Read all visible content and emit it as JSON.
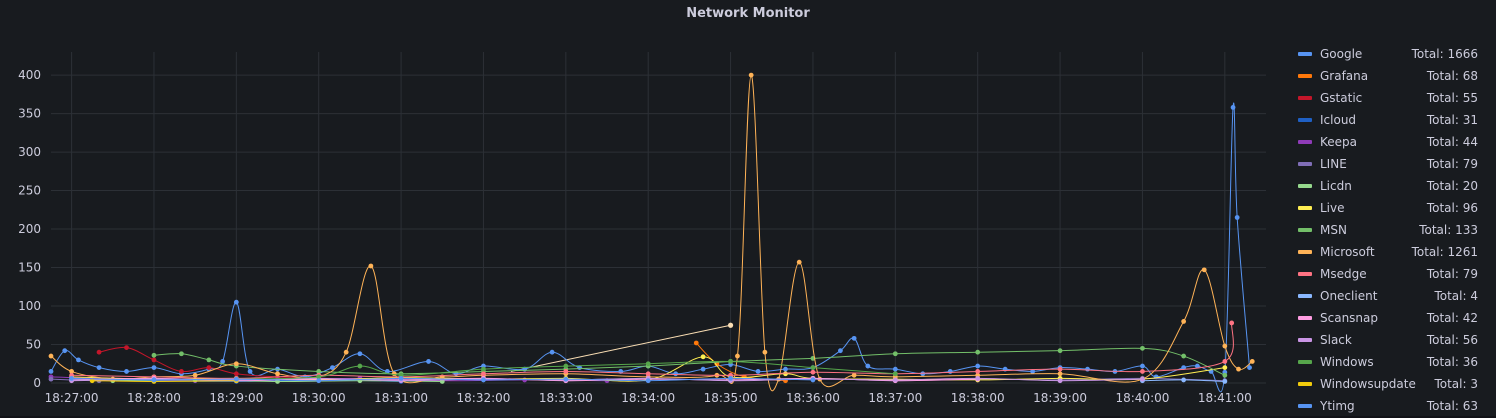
{
  "panel": {
    "title": "Network Monitor"
  },
  "chart_data": {
    "type": "line",
    "title": "Network Monitor",
    "xlabel": "",
    "ylabel": "",
    "ylim": [
      0,
      430
    ],
    "y_ticks": [
      0,
      50,
      100,
      150,
      200,
      250,
      300,
      350,
      400
    ],
    "x_range": [
      "18:26:45",
      "18:41:30"
    ],
    "x_ticks": [
      "18:27:00",
      "18:28:00",
      "18:29:00",
      "18:30:00",
      "18:31:00",
      "18:32:00",
      "18:33:00",
      "18:34:00",
      "18:35:00",
      "18:36:00",
      "18:37:00",
      "18:38:00",
      "18:39:00",
      "18:40:00",
      "18:41:00"
    ],
    "grid": true,
    "legend_position": "right",
    "series": [
      {
        "name": "Google",
        "total": "Total: 1666",
        "color": "#5794f2",
        "points": [
          [
            "18:26:45",
            15
          ],
          [
            "18:26:55",
            42
          ],
          [
            "18:27:05",
            30
          ],
          [
            "18:27:20",
            20
          ],
          [
            "18:27:40",
            15
          ],
          [
            "18:28:00",
            20
          ],
          [
            "18:28:20",
            12
          ],
          [
            "18:28:40",
            18
          ],
          [
            "18:28:50",
            28
          ],
          [
            "18:29:00",
            105
          ],
          [
            "18:29:10",
            15
          ],
          [
            "18:29:30",
            18
          ],
          [
            "18:29:50",
            8
          ],
          [
            "18:30:10",
            20
          ],
          [
            "18:30:30",
            38
          ],
          [
            "18:30:50",
            15
          ],
          [
            "18:31:20",
            28
          ],
          [
            "18:31:40",
            12
          ],
          [
            "18:32:00",
            22
          ],
          [
            "18:32:30",
            18
          ],
          [
            "18:32:50",
            40
          ],
          [
            "18:33:10",
            20
          ],
          [
            "18:33:40",
            15
          ],
          [
            "18:34:00",
            22
          ],
          [
            "18:34:20",
            12
          ],
          [
            "18:34:40",
            18
          ],
          [
            "18:35:00",
            24
          ],
          [
            "18:35:20",
            15
          ],
          [
            "18:35:40",
            18
          ],
          [
            "18:36:00",
            20
          ],
          [
            "18:36:20",
            42
          ],
          [
            "18:36:30",
            58
          ],
          [
            "18:36:40",
            22
          ],
          [
            "18:37:00",
            18
          ],
          [
            "18:37:20",
            12
          ],
          [
            "18:37:40",
            15
          ],
          [
            "18:38:00",
            22
          ],
          [
            "18:38:20",
            18
          ],
          [
            "18:38:40",
            15
          ],
          [
            "18:39:00",
            20
          ],
          [
            "18:39:20",
            18
          ],
          [
            "18:39:40",
            15
          ],
          [
            "18:40:00",
            22
          ],
          [
            "18:40:10",
            8
          ],
          [
            "18:40:30",
            20
          ],
          [
            "18:40:40",
            22
          ],
          [
            "18:40:50",
            15
          ],
          [
            "18:41:00",
            14
          ],
          [
            "18:41:06",
            358
          ],
          [
            "18:41:09",
            215
          ],
          [
            "18:41:18",
            20
          ]
        ]
      },
      {
        "name": "Grafana",
        "total": "Total: 68",
        "color": "#ff780a",
        "points": [
          [
            "18:34:35",
            52
          ],
          [
            "18:34:50",
            25
          ],
          [
            "18:35:10",
            8
          ],
          [
            "18:35:40",
            3
          ]
        ]
      },
      {
        "name": "Gstatic",
        "total": "Total: 55",
        "color": "#c4162a",
        "points": [
          [
            "18:27:20",
            40
          ],
          [
            "18:27:40",
            46
          ],
          [
            "18:28:00",
            30
          ],
          [
            "18:28:20",
            15
          ],
          [
            "18:28:40",
            20
          ],
          [
            "18:29:00",
            12
          ],
          [
            "18:29:30",
            8
          ],
          [
            "18:30:30",
            5
          ]
        ]
      },
      {
        "name": "Icloud",
        "total": "Total: 31",
        "color": "#1f60c4",
        "points": [
          [
            "18:27:00",
            5
          ],
          [
            "18:28:00",
            3
          ],
          [
            "18:29:00",
            2
          ],
          [
            "18:30:00",
            4
          ],
          [
            "18:31:00",
            2
          ]
        ]
      },
      {
        "name": "Keepa",
        "total": "Total: 44",
        "color": "#8f3bb8",
        "points": [
          [
            "18:26:45",
            8
          ],
          [
            "18:27:30",
            5
          ],
          [
            "18:28:30",
            3
          ],
          [
            "18:29:30",
            4
          ],
          [
            "18:30:30",
            6
          ],
          [
            "18:31:30",
            3
          ],
          [
            "18:32:30",
            4
          ],
          [
            "18:33:30",
            3
          ]
        ]
      },
      {
        "name": "LINE",
        "total": "Total: 79",
        "color": "#806eb7",
        "points": [
          [
            "18:26:45",
            5
          ],
          [
            "18:27:20",
            3
          ],
          [
            "18:28:00",
            6
          ],
          [
            "18:29:00",
            3
          ],
          [
            "18:30:00",
            5
          ],
          [
            "18:31:00",
            4
          ],
          [
            "18:32:00",
            6
          ],
          [
            "18:33:00",
            3
          ],
          [
            "18:34:00",
            5
          ],
          [
            "18:35:00",
            4
          ],
          [
            "18:36:00",
            6
          ],
          [
            "18:37:00",
            3
          ],
          [
            "18:38:00",
            5
          ],
          [
            "18:39:00",
            4
          ],
          [
            "18:40:00",
            6
          ],
          [
            "18:41:00",
            3
          ]
        ]
      },
      {
        "name": "Licdn",
        "total": "Total: 20",
        "color": "#96d98d",
        "points": [
          [
            "18:27:30",
            3
          ],
          [
            "18:28:30",
            4
          ],
          [
            "18:29:30",
            2
          ],
          [
            "18:30:30",
            3
          ],
          [
            "18:31:30",
            2
          ]
        ]
      },
      {
        "name": "Live",
        "total": "Total: 96",
        "color": "#ffee52",
        "points": [
          [
            "18:27:00",
            8
          ],
          [
            "18:28:00",
            5
          ],
          [
            "18:29:00",
            6
          ],
          [
            "18:30:00",
            4
          ],
          [
            "18:31:00",
            7
          ],
          [
            "18:32:00",
            5
          ],
          [
            "18:33:00",
            6
          ],
          [
            "18:34:00",
            4
          ],
          [
            "18:34:40",
            34
          ],
          [
            "18:35:00",
            8
          ],
          [
            "18:35:40",
            12
          ],
          [
            "18:36:00",
            6
          ],
          [
            "18:37:00",
            5
          ],
          [
            "18:38:00",
            4
          ],
          [
            "18:39:00",
            6
          ],
          [
            "18:40:00",
            5
          ],
          [
            "18:41:00",
            20
          ]
        ]
      },
      {
        "name": "MSN",
        "total": "Total: 133",
        "color": "#73bf69",
        "points": [
          [
            "18:28:00",
            36
          ],
          [
            "18:28:20",
            38
          ],
          [
            "18:28:40",
            30
          ],
          [
            "18:29:00",
            22
          ],
          [
            "18:30:00",
            15
          ],
          [
            "18:31:00",
            12
          ],
          [
            "18:32:00",
            15
          ],
          [
            "18:33:00",
            18
          ],
          [
            "18:34:00",
            22
          ],
          [
            "18:35:00",
            28
          ],
          [
            "18:36:00",
            32
          ],
          [
            "18:37:00",
            38
          ],
          [
            "18:38:00",
            40
          ],
          [
            "18:39:00",
            42
          ],
          [
            "18:40:00",
            45
          ],
          [
            "18:40:30",
            35
          ],
          [
            "18:41:00",
            10
          ]
        ]
      },
      {
        "name": "Microsoft",
        "total": "Total: 1261",
        "color": "#ffb357",
        "points": [
          [
            "18:26:45",
            35
          ],
          [
            "18:27:00",
            15
          ],
          [
            "18:27:30",
            5
          ],
          [
            "18:28:00",
            8
          ],
          [
            "18:28:30",
            10
          ],
          [
            "18:29:00",
            25
          ],
          [
            "18:29:30",
            12
          ],
          [
            "18:30:00",
            8
          ],
          [
            "18:30:20",
            40
          ],
          [
            "18:30:38",
            152
          ],
          [
            "18:30:55",
            12
          ],
          [
            "18:31:30",
            8
          ],
          [
            "18:32:00",
            10
          ],
          [
            "18:33:00",
            12
          ],
          [
            "18:34:00",
            8
          ],
          [
            "18:34:50",
            10
          ],
          [
            "18:35:05",
            35
          ],
          [
            "18:35:15",
            400
          ],
          [
            "18:35:25",
            40
          ],
          [
            "18:35:35",
            5
          ],
          [
            "18:35:50",
            157
          ],
          [
            "18:36:05",
            5
          ],
          [
            "18:36:30",
            10
          ],
          [
            "18:37:00",
            8
          ],
          [
            "18:38:00",
            10
          ],
          [
            "18:39:00",
            12
          ],
          [
            "18:40:00",
            5
          ],
          [
            "18:40:30",
            80
          ],
          [
            "18:40:45",
            147
          ],
          [
            "18:41:00",
            48
          ],
          [
            "18:41:10",
            18
          ],
          [
            "18:41:20",
            28
          ]
        ]
      },
      {
        "name": "Msedge",
        "total": "Total: 79",
        "color": "#ff7383",
        "points": [
          [
            "18:27:00",
            10
          ],
          [
            "18:28:00",
            8
          ],
          [
            "18:29:00",
            6
          ],
          [
            "18:30:00",
            10
          ],
          [
            "18:31:00",
            8
          ],
          [
            "18:32:00",
            12
          ],
          [
            "18:33:00",
            15
          ],
          [
            "18:34:00",
            12
          ],
          [
            "18:35:00",
            10
          ],
          [
            "18:36:00",
            14
          ],
          [
            "18:37:00",
            12
          ],
          [
            "18:38:00",
            15
          ],
          [
            "18:39:00",
            18
          ],
          [
            "18:40:00",
            15
          ],
          [
            "18:41:00",
            28
          ],
          [
            "18:41:05",
            78
          ]
        ]
      },
      {
        "name": "Oneclient",
        "total": "Total: 4",
        "color": "#8ab8ff",
        "points": [
          [
            "18:40:00",
            3
          ],
          [
            "18:40:30",
            4
          ],
          [
            "18:41:00",
            2
          ]
        ]
      },
      {
        "name": "Scansnap",
        "total": "Total: 42",
        "color": "#ff9de2",
        "points": [
          [
            "18:27:00",
            4
          ],
          [
            "18:28:00",
            6
          ],
          [
            "18:29:00",
            3
          ],
          [
            "18:30:00",
            5
          ],
          [
            "18:31:00",
            4
          ],
          [
            "18:32:00",
            6
          ],
          [
            "18:33:00",
            3
          ],
          [
            "18:34:00",
            5
          ],
          [
            "18:35:00",
            4
          ],
          [
            "18:36:00",
            6
          ],
          [
            "18:37:00",
            3
          ],
          [
            "18:38:00",
            5
          ]
        ]
      },
      {
        "name": "Slack",
        "total": "Total: 56",
        "color": "#ca95e5",
        "points": [
          [
            "18:27:00",
            3
          ],
          [
            "18:28:00",
            5
          ],
          [
            "18:29:00",
            4
          ],
          [
            "18:30:00",
            6
          ],
          [
            "18:31:00",
            3
          ],
          [
            "18:32:00",
            5
          ],
          [
            "18:33:00",
            4
          ],
          [
            "18:34:00",
            6
          ],
          [
            "18:35:00",
            3
          ],
          [
            "18:36:00",
            5
          ],
          [
            "18:37:00",
            4
          ],
          [
            "18:38:00",
            6
          ],
          [
            "18:39:00",
            3
          ],
          [
            "18:40:00",
            5
          ]
        ]
      },
      {
        "name": "Windows",
        "total": "Total: 36",
        "color": "#56a64b",
        "points": [
          [
            "18:29:00",
            5
          ],
          [
            "18:30:00",
            8
          ],
          [
            "18:30:30",
            22
          ],
          [
            "18:31:00",
            10
          ],
          [
            "18:32:00",
            18
          ],
          [
            "18:33:00",
            22
          ],
          [
            "18:34:00",
            25
          ],
          [
            "18:35:00",
            28
          ],
          [
            "18:36:00",
            20
          ],
          [
            "18:37:00",
            12
          ]
        ]
      },
      {
        "name": "Windowsupdate",
        "total": "Total: 3",
        "color": "#f2cc0c",
        "points": [
          [
            "18:27:15",
            3
          ],
          [
            "18:28:00",
            2
          ],
          [
            "18:29:00",
            3
          ]
        ]
      },
      {
        "name": "Ytimg",
        "total": "Total: 63",
        "color": "#5794f2",
        "points": [
          [
            "18:27:00",
            6
          ],
          [
            "18:28:00",
            4
          ],
          [
            "18:29:00",
            5
          ],
          [
            "18:30:00",
            3
          ],
          [
            "18:31:00",
            6
          ],
          [
            "18:32:00",
            4
          ],
          [
            "18:33:00",
            5
          ],
          [
            "18:34:00",
            3
          ],
          [
            "18:35:00",
            6
          ],
          [
            "18:36:00",
            4
          ]
        ]
      }
    ],
    "annotations": [
      {
        "from": "18:32:20",
        "to": "18:35:00",
        "y_from": 15,
        "y_to": 75,
        "color": "#fadeb4"
      }
    ]
  }
}
